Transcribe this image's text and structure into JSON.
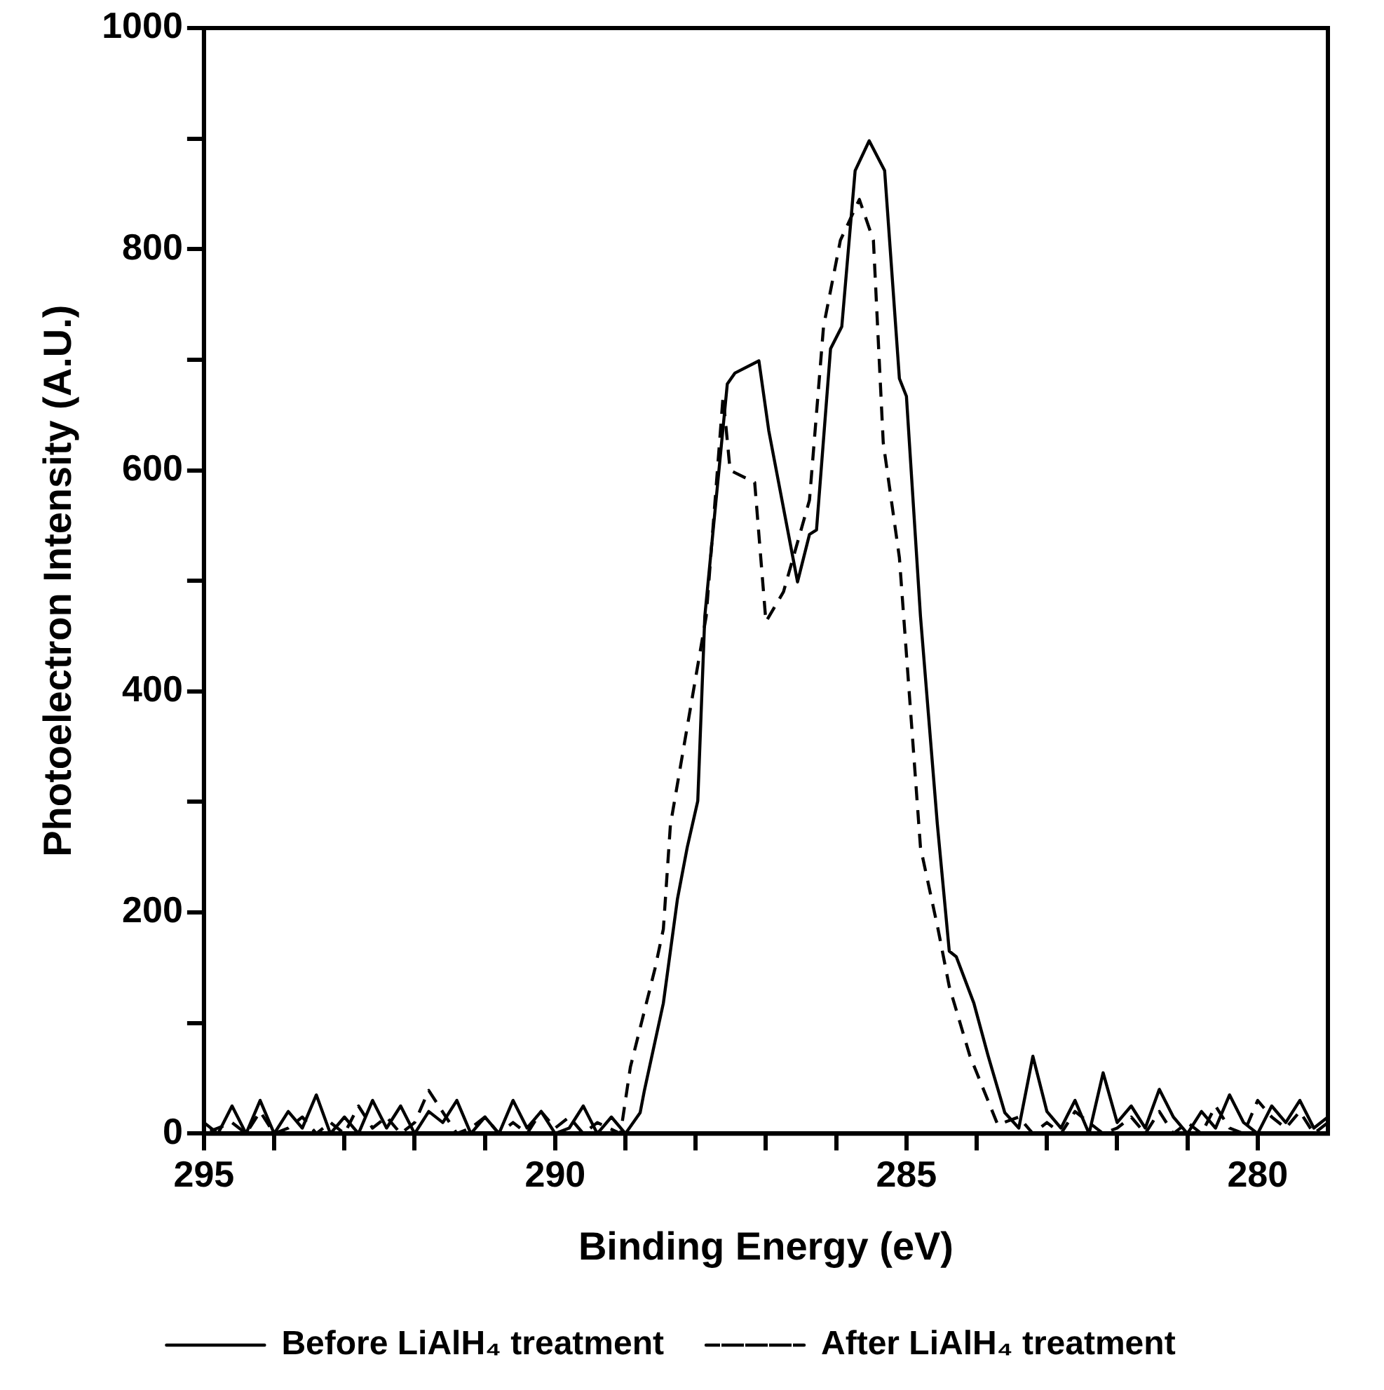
{
  "chart_data": {
    "type": "line",
    "xlabel": "Binding Energy (eV)",
    "ylabel": "Photoelectron Intensity (A.U.)",
    "xlim": [
      295,
      279
    ],
    "xticks": [
      295,
      {
        "value": 294,
        "label": null
      },
      {
        "value": 293,
        "label": null
      },
      {
        "value": 292,
        "label": null
      },
      {
        "value": 291,
        "label": null
      },
      290,
      {
        "value": 289,
        "label": null
      },
      {
        "value": 288,
        "label": null
      },
      {
        "value": 287,
        "label": null
      },
      {
        "value": 286,
        "label": null
      },
      285,
      {
        "value": 284,
        "label": null
      },
      {
        "value": 283,
        "label": null
      },
      {
        "value": 282,
        "label": null
      },
      {
        "value": 281,
        "label": null
      },
      280
    ],
    "ylim": [
      0,
      1000
    ],
    "yticks": [
      0,
      {
        "value": 100,
        "label": null
      },
      200,
      {
        "value": 300,
        "label": null
      },
      400,
      {
        "value": 500,
        "label": null
      },
      600,
      {
        "value": 700,
        "label": null
      },
      800,
      {
        "value": 900,
        "label": null
      },
      1000
    ],
    "legend": "bottom",
    "marker": "none",
    "grid": false,
    "series": [
      {
        "name": "Before LiAlH₄ treatment",
        "color": "#000000",
        "line_style": "solid",
        "x": [
          279.0,
          279.2,
          279.4,
          279.6,
          279.8,
          280.0,
          280.2,
          280.4,
          280.6,
          280.8,
          281.0,
          281.2,
          281.4,
          281.6,
          281.8,
          282.0,
          282.2,
          282.4,
          282.6,
          282.8,
          283.0,
          283.2,
          283.4,
          283.6,
          283.84,
          284.04,
          284.29,
          284.39,
          284.56,
          284.8,
          285.0,
          285.1,
          285.31,
          285.53,
          285.73,
          285.92,
          286.08,
          286.28,
          286.38,
          286.55,
          286.96,
          287.1,
          287.44,
          287.55,
          287.87,
          287.97,
          288.12,
          288.26,
          288.46,
          288.73,
          288.79,
          289.0,
          289.2,
          289.4,
          289.6,
          289.8,
          290.0,
          290.2,
          290.4,
          290.6,
          290.8,
          291.0,
          291.2,
          291.4,
          291.6,
          291.8,
          292.0,
          292.2,
          292.4,
          292.6,
          292.8,
          293.0,
          293.2,
          293.4,
          293.6,
          293.8,
          294.0,
          294.2,
          294.4,
          294.6,
          294.8,
          295.0
        ],
        "values": [
          15,
          5,
          30,
          10,
          25,
          0,
          10,
          35,
          5,
          20,
          0,
          15,
          40,
          5,
          25,
          10,
          55,
          0,
          30,
          5,
          20,
          70,
          5,
          19,
          71,
          118,
          160,
          165,
          280,
          468,
          667,
          683,
          871,
          898,
          871,
          730,
          710,
          546,
          542,
          499,
          636,
          699,
          688,
          678,
          468,
          301,
          259,
          212,
          118,
          39,
          19,
          0,
          15,
          0,
          25,
          5,
          0,
          20,
          5,
          30,
          0,
          15,
          0,
          30,
          10,
          20,
          0,
          25,
          5,
          30,
          0,
          15,
          0,
          35,
          5,
          20,
          0,
          30,
          0,
          25,
          0,
          10
        ]
      },
      {
        "name": "After LiAlH₄ treatment",
        "color": "#000000",
        "line_style": "dashed",
        "x": [
          279.0,
          279.2,
          279.4,
          279.6,
          279.8,
          280.0,
          280.2,
          280.4,
          280.6,
          280.8,
          281.0,
          281.2,
          281.4,
          281.6,
          281.8,
          282.0,
          282.2,
          282.4,
          282.6,
          282.8,
          283.0,
          283.2,
          283.4,
          283.7,
          284.1,
          284.39,
          284.55,
          284.8,
          284.92,
          285.1,
          285.33,
          285.47,
          285.67,
          285.94,
          286.18,
          286.38,
          286.75,
          287.0,
          287.16,
          287.51,
          287.61,
          287.85,
          288.36,
          288.46,
          288.58,
          288.93,
          289.07,
          289.4,
          289.6,
          289.8,
          290.0,
          290.2,
          290.4,
          290.6,
          290.8,
          291.0,
          291.2,
          291.4,
          291.8,
          292.0,
          292.2,
          292.4,
          292.6,
          292.8,
          293.0,
          293.2,
          293.4,
          293.6,
          293.8,
          294.0,
          294.2,
          294.4,
          294.6,
          294.8,
          295.0
        ],
        "values": [
          10,
          0,
          20,
          5,
          15,
          30,
          0,
          5,
          25,
          0,
          10,
          0,
          20,
          0,
          15,
          5,
          0,
          10,
          20,
          0,
          10,
          0,
          15,
          8,
          71,
          133,
          185,
          259,
          364,
          521,
          625,
          808,
          845,
          808,
          730,
          573,
          490,
          463,
          589,
          600,
          667,
          468,
          279,
          185,
          149,
          60,
          0,
          10,
          0,
          15,
          5,
          20,
          0,
          10,
          0,
          15,
          5,
          0,
          39,
          10,
          0,
          15,
          5,
          25,
          0,
          10,
          0,
          15,
          5,
          0,
          20,
          0,
          10,
          5,
          0
        ]
      }
    ]
  }
}
